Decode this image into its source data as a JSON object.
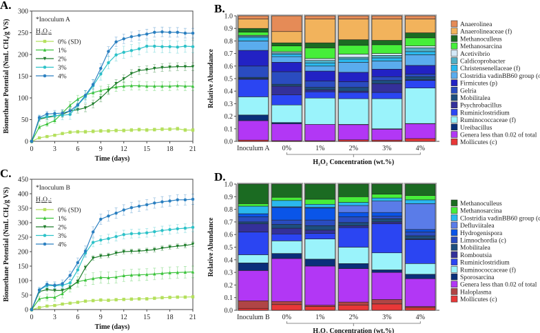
{
  "chart_data": [
    {
      "panel": "A.",
      "type": "line",
      "annotation": "*Inoculum A",
      "legend_title": "H₂O₂:",
      "xlabel": "Time (days)",
      "ylabel": "Biomethane Potential (NmL CH₄/g VS)",
      "xlim": [
        0,
        21
      ],
      "ylim": [
        0,
        300
      ],
      "xticks": [
        0,
        3,
        6,
        9,
        12,
        15,
        18,
        21
      ],
      "yticks": [
        0,
        50,
        100,
        150,
        200,
        250,
        300
      ],
      "legend": "top-left",
      "x": [
        0,
        1,
        2,
        3,
        4,
        5,
        6,
        7,
        8,
        9,
        10,
        11,
        12,
        13,
        14,
        15,
        16,
        17,
        18,
        19,
        20,
        21
      ],
      "series": [
        {
          "name": "0% (SD)",
          "color": "#b4e05c",
          "marker": "square",
          "sd": 4,
          "values": [
            0,
            8,
            11,
            14,
            18,
            21,
            22,
            22,
            23,
            24,
            24,
            25,
            25,
            26,
            27,
            26,
            27,
            28,
            28,
            29,
            26,
            26
          ]
        },
        {
          "name": "1%",
          "color": "#3cc43c",
          "marker": "triangle-up",
          "sd": 10,
          "values": [
            0,
            33,
            40,
            48,
            65,
            83,
            97,
            107,
            112,
            117,
            121,
            125,
            127,
            128,
            128,
            127,
            127,
            127,
            127,
            128,
            127,
            127
          ]
        },
        {
          "name": "2%",
          "color": "#1e7d2a",
          "marker": "triangle-down",
          "sd": 9,
          "values": [
            0,
            51,
            55,
            58,
            62,
            70,
            73,
            77,
            86,
            100,
            117,
            133,
            144,
            156,
            163,
            165,
            168,
            170,
            171,
            172,
            172,
            172
          ]
        },
        {
          "name": "3%",
          "color": "#2cc2c8",
          "marker": "star",
          "sd": 14,
          "values": [
            0,
            53,
            57,
            59,
            60,
            62,
            83,
            103,
            128,
            155,
            181,
            199,
            205,
            209,
            213,
            219,
            219,
            218,
            218,
            217,
            219,
            218
          ]
        },
        {
          "name": "4%",
          "color": "#2a7fc0",
          "marker": "star",
          "sd": 11,
          "values": [
            0,
            55,
            63,
            64,
            65,
            70,
            84,
            106,
            131,
            168,
            207,
            229,
            236,
            241,
            244,
            247,
            251,
            252,
            251,
            251,
            249,
            249
          ]
        }
      ]
    },
    {
      "panel": "B.",
      "type": "bar",
      "stacked": true,
      "ylabel": "Relative Abundance",
      "xlabel": "H₂O₂ Concentration  (wt.%)",
      "ylim": [
        0,
        1
      ],
      "yticks": [
        "0.0",
        "0.1",
        "0.2",
        "0.3",
        "0.4",
        "0.5",
        "0.6",
        "0.7",
        "0.8",
        "0.9",
        "1.0"
      ],
      "categories": [
        "Inoculum A",
        "0%",
        "1%",
        "2%",
        "3%",
        "4%"
      ],
      "legend": "right",
      "series": [
        {
          "name": "Mollicutes (c)",
          "color": "#e83838",
          "values": [
            0.01,
            0.005,
            0.005,
            0.012,
            0.01,
            0.022
          ]
        },
        {
          "name": "Genera less than 0.02 of total",
          "color": "#b237f5",
          "values": [
            0.155,
            0.135,
            0.13,
            0.121,
            0.087,
            0.118
          ]
        },
        {
          "name": "Ureibacillus",
          "color": "#0a2f7a",
          "values": [
            0.045,
            0.01,
            0.0,
            0.002,
            0.003,
            0.002
          ]
        },
        {
          "name": "Ruminococcaceae (f)",
          "color": "#9af3fb",
          "values": [
            0.145,
            0.14,
            0.21,
            0.205,
            0.24,
            0.283
          ]
        },
        {
          "name": "Ruminiclostridium",
          "color": "#2b45f2",
          "values": [
            0.14,
            0.08,
            0.05,
            0.05,
            0.05,
            0.06
          ]
        },
        {
          "name": "Psychrobacillus",
          "color": "#34309a",
          "values": [
            0.005,
            0.07,
            0.015,
            0.01,
            0.07,
            0.005
          ]
        },
        {
          "name": "Mobilitalea",
          "color": "#1d4e7e",
          "values": [
            0.01,
            0.015,
            0.02,
            0.03,
            0.025,
            0.025
          ]
        },
        {
          "name": "Gelria",
          "color": "#2a4cc0",
          "values": [
            0.09,
            0.1,
            0.05,
            0.045,
            0.03,
            0.02
          ]
        },
        {
          "name": "Firmicutes (p)",
          "color": "#2222c4",
          "values": [
            0.125,
            0.075,
            0.08,
            0.075,
            0.06,
            0.07
          ]
        },
        {
          "name": "Clostridia vadinBB60 group (o)",
          "color": "#5aacee",
          "values": [
            0.075,
            0.045,
            0.04,
            0.08,
            0.065,
            0.085
          ]
        },
        {
          "name": "Christensenellaceae (f)",
          "color": "#2ab8ee",
          "values": [
            0.03,
            0.02,
            0.025,
            0.025,
            0.025,
            0.025
          ]
        },
        {
          "name": "Caldicoprobacter",
          "color": "#4fb0c6",
          "values": [
            0.01,
            0.01,
            0.02,
            0.015,
            0.02,
            0.03
          ]
        },
        {
          "name": "Acetivibrio",
          "color": "#d3e8f7",
          "values": [
            0.005,
            0.01,
            0.015,
            0.025,
            0.015,
            0.015
          ]
        },
        {
          "name": "Methanosarcina",
          "color": "#46ee3a",
          "values": [
            0.025,
            0.045,
            0.085,
            0.07,
            0.07,
            0.065
          ]
        },
        {
          "name": "Methanoculleus",
          "color": "#1b6b22",
          "values": [
            0.03,
            0.025,
            0.04,
            0.045,
            0.035,
            0.04
          ]
        },
        {
          "name": "Anaerolineaceae (f)",
          "color": "#f2b35c",
          "values": [
            0.075,
            0.09,
            0.19,
            0.165,
            0.17,
            0.11
          ]
        },
        {
          "name": "Anaerolinea",
          "color": "#e58b57",
          "values": [
            0.025,
            0.125,
            0.025,
            0.025,
            0.025,
            0.025
          ]
        }
      ]
    },
    {
      "panel": "C.",
      "type": "line",
      "annotation": "*Inoculum B",
      "legend_title": "H₂O₂:",
      "xlabel": "Time (days)",
      "ylabel": "Biomethane Potential (NmL CH₄/g VS)",
      "xlim": [
        0,
        21
      ],
      "ylim": [
        0,
        450
      ],
      "xticks": [
        0,
        3,
        6,
        9,
        12,
        15,
        18,
        21
      ],
      "yticks": [
        0,
        50,
        100,
        150,
        200,
        250,
        300,
        350,
        400,
        450
      ],
      "legend": "top-left",
      "x": [
        0,
        1,
        2,
        3,
        4,
        5,
        6,
        7,
        8,
        9,
        10,
        11,
        12,
        13,
        14,
        15,
        16,
        17,
        18,
        19,
        20,
        21
      ],
      "series": [
        {
          "name": "0% (SD)",
          "color": "#b4e05c",
          "marker": "square",
          "sd": 5,
          "values": [
            0,
            7,
            12,
            14,
            19,
            22,
            25,
            29,
            31,
            33,
            32,
            34,
            35,
            36,
            37,
            37,
            39,
            41,
            42,
            43,
            43,
            44
          ]
        },
        {
          "name": "1%",
          "color": "#3cc43c",
          "marker": "triangle-up",
          "sd": 20,
          "values": [
            0,
            37,
            42,
            42,
            55,
            77,
            96,
            102,
            107,
            111,
            110,
            112,
            117,
            119,
            120,
            121,
            123,
            125,
            127,
            128,
            129,
            130
          ]
        },
        {
          "name": "2%",
          "color": "#1e7d2a",
          "marker": "triangle-down",
          "sd": 8,
          "values": [
            0,
            62,
            69,
            66,
            66,
            77,
            97,
            145,
            178,
            185,
            187,
            195,
            200,
            201,
            202,
            204,
            207,
            212,
            216,
            219,
            221,
            226
          ]
        },
        {
          "name": "3%",
          "color": "#2cc2c8",
          "marker": "star",
          "sd": 15,
          "values": [
            0,
            67,
            83,
            82,
            84,
            92,
            137,
            195,
            232,
            240,
            245,
            252,
            259,
            262,
            263,
            265,
            269,
            273,
            276,
            279,
            281,
            284
          ]
        },
        {
          "name": "4%",
          "color": "#2a7fc0",
          "marker": "star",
          "sd": 18,
          "values": [
            0,
            68,
            87,
            84,
            89,
            118,
            162,
            202,
            268,
            312,
            323,
            333,
            344,
            352,
            357,
            362,
            368,
            372,
            375,
            379,
            379,
            381
          ]
        }
      ]
    },
    {
      "panel": "D.",
      "type": "bar",
      "stacked": true,
      "ylabel": "Relative Abundance",
      "xlabel": "H₂O₂ Concentration  (wt.%)",
      "ylim": [
        0,
        1
      ],
      "yticks": [
        "0.0",
        "0.1",
        "0.2",
        "0.3",
        "0.4",
        "0.5",
        "0.6",
        "0.7",
        "0.8",
        "0.9",
        "1.0"
      ],
      "categories": [
        "Inoculum B",
        "0%",
        "1%",
        "2%",
        "3%",
        "4%"
      ],
      "legend": "right",
      "series": [
        {
          "name": "Mollicutes (c)",
          "color": "#e83838",
          "values": [
            0.015,
            0.045,
            0.03,
            0.04,
            0.05,
            0.02
          ]
        },
        {
          "name": "Haloplasma",
          "color": "#b04545",
          "values": [
            0.06,
            0.025,
            0.01,
            0.025,
            0.035,
            0.01
          ]
        },
        {
          "name": "Genera less than 0.02 of total",
          "color": "#b237f5",
          "values": [
            0.24,
            0.34,
            0.31,
            0.265,
            0.215,
            0.22
          ]
        },
        {
          "name": "Sporosarcina",
          "color": "#0a2f7a",
          "values": [
            0.06,
            0.04,
            0.055,
            0.04,
            0.02,
            0.035
          ]
        },
        {
          "name": "Ruminococcaceae (f)",
          "color": "#9af3fb",
          "values": [
            0.065,
            0.1,
            0.16,
            0.13,
            0.135,
            0.085
          ]
        },
        {
          "name": "Ruminiclostridium",
          "color": "#2b45f2",
          "values": [
            0.18,
            0.055,
            0.045,
            0.155,
            0.23,
            0.19
          ]
        },
        {
          "name": "Romboutsia",
          "color": "#34309a",
          "values": [
            0.065,
            0.045,
            0.025,
            0.015,
            0.015,
            0.005
          ]
        },
        {
          "name": "Mobilitalea",
          "color": "#1d4e7e",
          "values": [
            0.015,
            0.03,
            0.035,
            0.025,
            0.025,
            0.025
          ]
        },
        {
          "name": "Limnochordia (c)",
          "color": "#2a4cc0",
          "values": [
            0.04,
            0.035,
            0.045,
            0.045,
            0.02,
            0.03
          ]
        },
        {
          "name": "Hydrogenispora",
          "color": "#0a55e8",
          "values": [
            0.025,
            0.1,
            0.095,
            0.035,
            0.03,
            0.02
          ]
        },
        {
          "name": "Defluviitalea",
          "color": "#5a7ce8",
          "values": [
            0.0,
            0.005,
            0.005,
            0.055,
            0.09,
            0.205
          ]
        },
        {
          "name": "Clostridia vadinBB60 group (c)",
          "color": "#2ab8ee",
          "values": [
            0.06,
            0.05,
            0.025,
            0.025,
            0.025,
            0.03
          ]
        },
        {
          "name": "Methanosarcina",
          "color": "#46ee3a",
          "values": [
            0.02,
            0.025,
            0.04,
            0.045,
            0.03,
            0.035
          ]
        },
        {
          "name": "Methanoculleus",
          "color": "#1b6b22",
          "values": [
            0.155,
            0.105,
            0.12,
            0.1,
            0.08,
            0.09
          ]
        }
      ]
    }
  ]
}
